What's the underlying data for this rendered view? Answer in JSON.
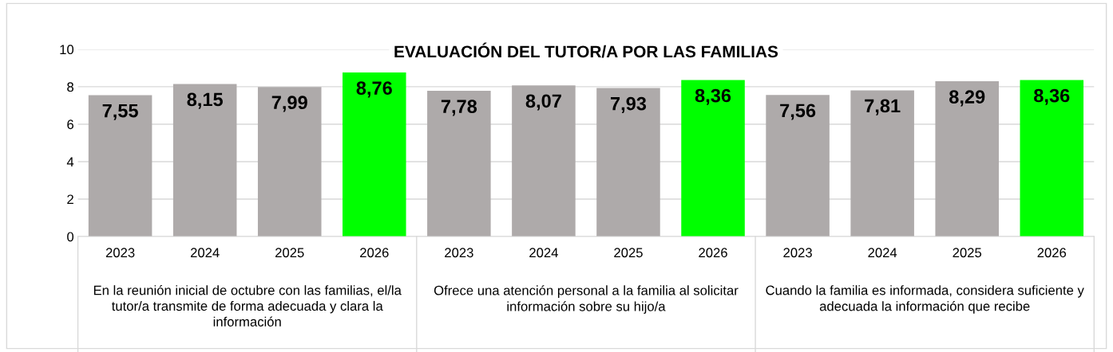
{
  "chart_data": {
    "type": "bar",
    "title": "EVALUACIÓN DEL TUTOR/A POR LAS FAMILIAS",
    "categories": [
      "2023",
      "2024",
      "2025",
      "2026",
      "2023",
      "2024",
      "2025",
      "2026",
      "2023",
      "2024",
      "2025",
      "2026"
    ],
    "values": [
      7.55,
      8.15,
      7.99,
      8.76,
      7.78,
      8.07,
      7.93,
      8.36,
      7.56,
      7.81,
      8.29,
      8.36
    ],
    "value_labels": [
      "7,55",
      "8,15",
      "7,99",
      "8,76",
      "7,78",
      "8,07",
      "7,93",
      "8,36",
      "7,56",
      "7,81",
      "8,29",
      "8,36"
    ],
    "colors": [
      "#aeaaaa",
      "#aeaaaa",
      "#aeaaaa",
      "#00ff00",
      "#aeaaaa",
      "#aeaaaa",
      "#aeaaaa",
      "#00ff00",
      "#aeaaaa",
      "#aeaaaa",
      "#aeaaaa",
      "#00ff00"
    ],
    "annotations": [
      "En la reunión inicial de octubre con las familias, el/la tutor/a transmite de forma adecuada y clara la información",
      "Ofrece una atención personal a la familia al solicitar información sobre su hijo/a",
      "Cuando la familia es informada, considera suficiente y adecuada la información que recibe"
    ],
    "ylim": [
      0,
      10
    ],
    "yticks": [
      0,
      2,
      4,
      6,
      8,
      10
    ],
    "grid": "y",
    "legend": false
  }
}
